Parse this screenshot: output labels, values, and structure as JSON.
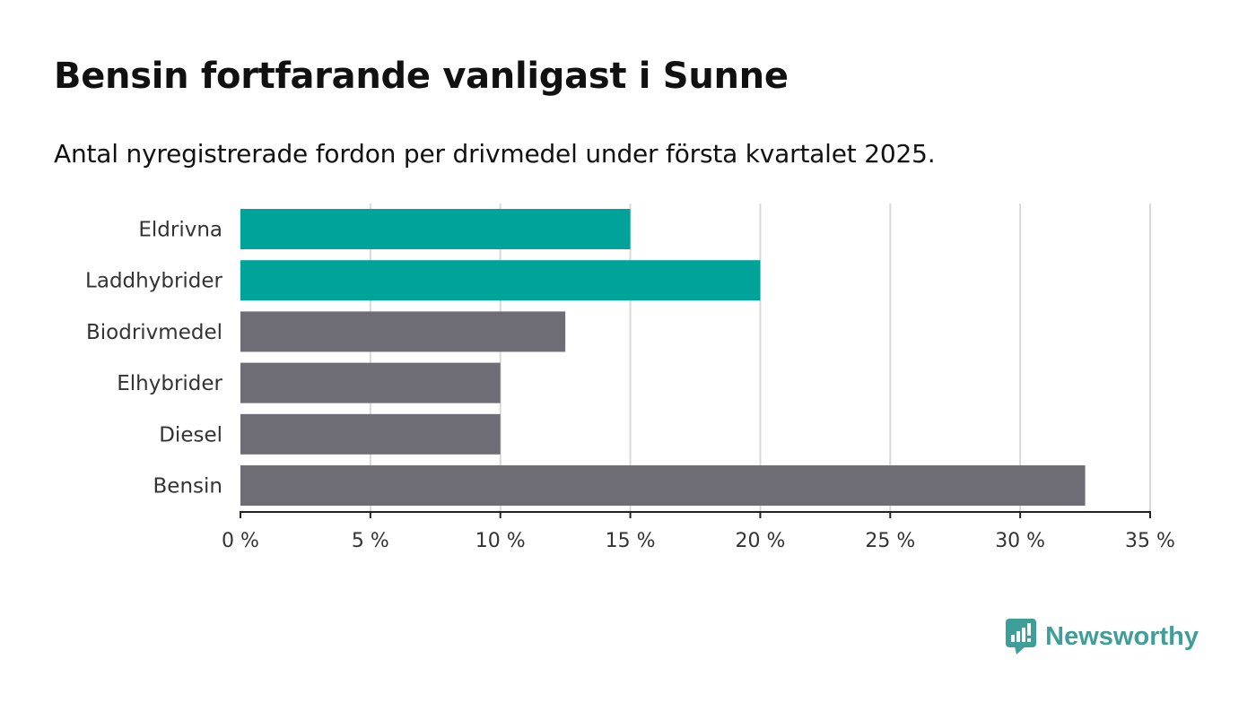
{
  "header": {
    "title": "Bensin fortfarande vanligast i Sunne",
    "subtitle": "Antal nyregistrerade fordon per drivmedel under första kvartalet 2025."
  },
  "brand": {
    "name": "Newsworthy",
    "icon": "newsworthy-logo-icon",
    "color": "#3e9e98"
  },
  "chart_data": {
    "type": "bar",
    "orientation": "horizontal",
    "categories": [
      "Eldrivna",
      "Laddhybrider",
      "Biodrivmedel",
      "Elhybrider",
      "Diesel",
      "Bensin"
    ],
    "values": [
      15,
      20,
      12.5,
      10,
      10,
      32.5
    ],
    "colors": [
      "#00a39a",
      "#00a39a",
      "#6e6d75",
      "#6e6d75",
      "#6e6d75",
      "#6e6d75"
    ],
    "xlim": [
      0,
      35
    ],
    "xticks": [
      0,
      5,
      10,
      15,
      20,
      25,
      30,
      35
    ],
    "tick_labels": [
      "0 %",
      "5 %",
      "10 %",
      "15 %",
      "20 %",
      "25 %",
      "30 %",
      "35 %"
    ],
    "grid": "vertical",
    "xlabel": "",
    "ylabel": ""
  }
}
